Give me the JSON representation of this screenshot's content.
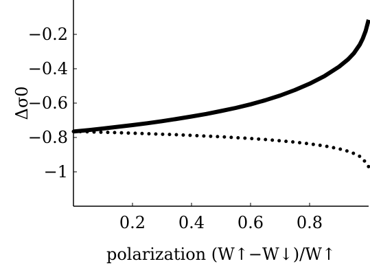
{
  "chart_data": {
    "type": "line",
    "title": "",
    "xlabel": "polarization (W↑−W↓)/W↑",
    "ylabel": "Δσ0",
    "xlim": [
      0,
      1
    ],
    "ylim": [
      -1.2,
      0
    ],
    "xticks": [
      0.2,
      0.4,
      0.6,
      0.8
    ],
    "xtick_labels": [
      "0.2",
      "0.4",
      "0.6",
      "0.8"
    ],
    "yticks": [
      -0.2,
      -0.4,
      -0.6,
      -0.8,
      -1.0
    ],
    "ytick_labels": [
      "−0.2",
      "−0.4",
      "−0.6",
      "−0.8",
      "−1"
    ],
    "grid": false,
    "legend": "none",
    "series": [
      {
        "style": "solid",
        "color": "#000000",
        "x": [
          0.0,
          0.05,
          0.1,
          0.15,
          0.2,
          0.25,
          0.3,
          0.35,
          0.4,
          0.45,
          0.5,
          0.55,
          0.6,
          0.65,
          0.7,
          0.75,
          0.8,
          0.85,
          0.9,
          0.93,
          0.95,
          0.97,
          0.98,
          0.99,
          1.0
        ],
        "y": [
          -0.765,
          -0.757,
          -0.748,
          -0.738,
          -0.728,
          -0.717,
          -0.705,
          -0.692,
          -0.678,
          -0.663,
          -0.646,
          -0.628,
          -0.607,
          -0.583,
          -0.556,
          -0.524,
          -0.487,
          -0.443,
          -0.388,
          -0.346,
          -0.31,
          -0.26,
          -0.225,
          -0.18,
          -0.115
        ]
      },
      {
        "style": "dotted",
        "color": "#000000",
        "x": [
          0.0,
          0.05,
          0.1,
          0.15,
          0.2,
          0.25,
          0.3,
          0.35,
          0.4,
          0.45,
          0.5,
          0.55,
          0.6,
          0.65,
          0.7,
          0.75,
          0.8,
          0.85,
          0.9,
          0.93,
          0.95,
          0.97,
          0.98,
          0.99,
          1.0
        ],
        "y": [
          -0.765,
          -0.767,
          -0.77,
          -0.772,
          -0.775,
          -0.778,
          -0.781,
          -0.784,
          -0.788,
          -0.792,
          -0.796,
          -0.801,
          -0.806,
          -0.812,
          -0.819,
          -0.827,
          -0.837,
          -0.849,
          -0.866,
          -0.88,
          -0.893,
          -0.91,
          -0.925,
          -0.945,
          -0.97
        ]
      }
    ]
  }
}
